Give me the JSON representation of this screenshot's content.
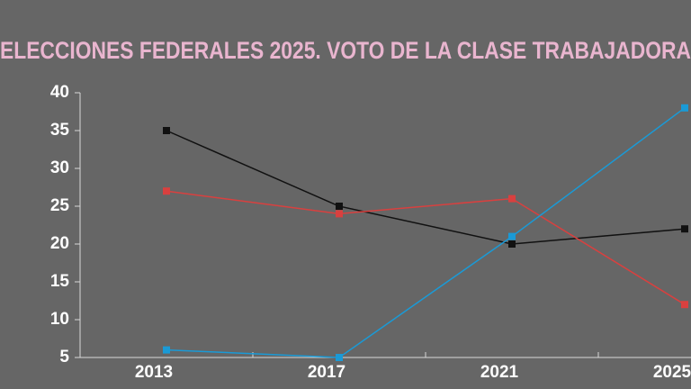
{
  "chart_data": {
    "type": "line",
    "title": "ELECCIONES FEDERALES 2025. VOTO DE LA CLASE TRABAJADORA",
    "categories": [
      "2013",
      "2017",
      "2021",
      "2025"
    ],
    "series": [
      {
        "color": "#111111",
        "values": [
          35,
          25,
          20,
          22
        ]
      },
      {
        "color": "#d9403f",
        "values": [
          27,
          24,
          26,
          12
        ]
      },
      {
        "color": "#1a9ad6",
        "values": [
          6,
          5,
          21,
          38
        ]
      }
    ],
    "ylim": [
      5,
      40
    ],
    "yticks": [
      5,
      10,
      15,
      20,
      25,
      30,
      35,
      40
    ],
    "grid": false
  }
}
